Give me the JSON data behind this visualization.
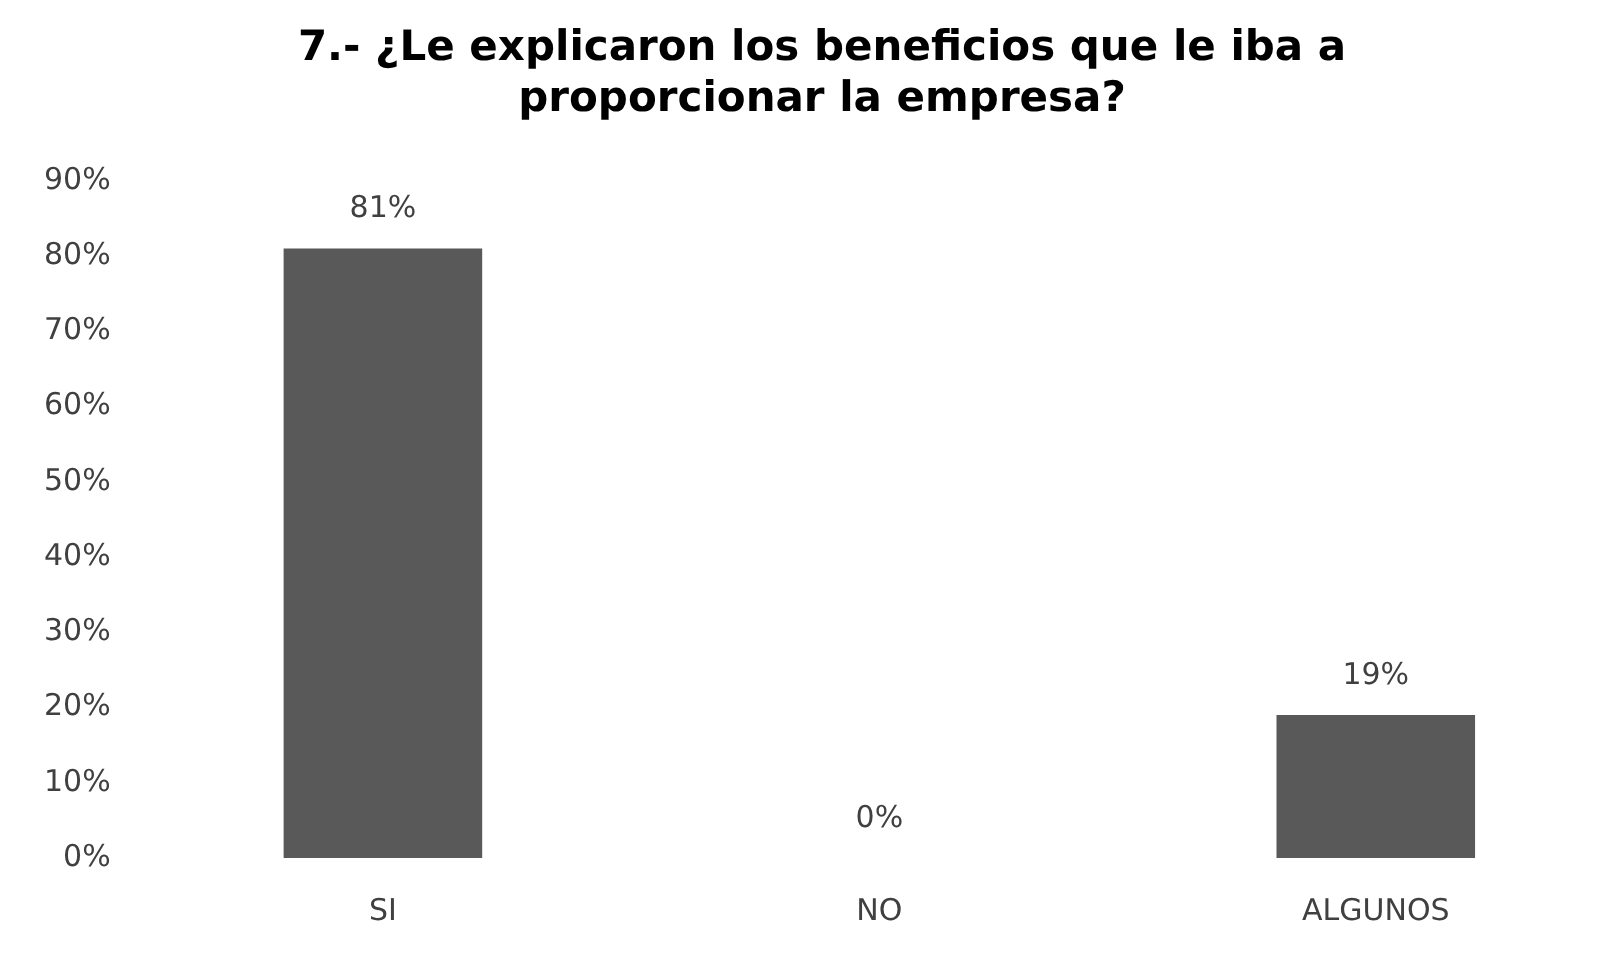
{
  "chart_data": {
    "type": "bar",
    "title": [
      "7.- ¿Le explicaron los beneficios que le iba a",
      "proporcionar la empresa?"
    ],
    "categories": [
      "SI",
      "NO",
      "ALGUNOS"
    ],
    "values": [
      81,
      0,
      19
    ],
    "color": "#595959",
    "value_labels": [
      "81%",
      "0%",
      "19%"
    ],
    "ylim": [
      0,
      90
    ],
    "yticks": [
      {
        "value": 0,
        "label": "0%"
      },
      {
        "value": 10,
        "label": "10%"
      },
      {
        "value": 20,
        "label": "20%"
      },
      {
        "value": 30,
        "label": "30%"
      },
      {
        "value": 40,
        "label": "40%"
      },
      {
        "value": 50,
        "label": "50%"
      },
      {
        "value": 60,
        "label": "60%"
      },
      {
        "value": 70,
        "label": "70%"
      },
      {
        "value": 80,
        "label": "80%"
      },
      {
        "value": 90,
        "label": "90%"
      }
    ],
    "grid": false,
    "legend": false
  }
}
